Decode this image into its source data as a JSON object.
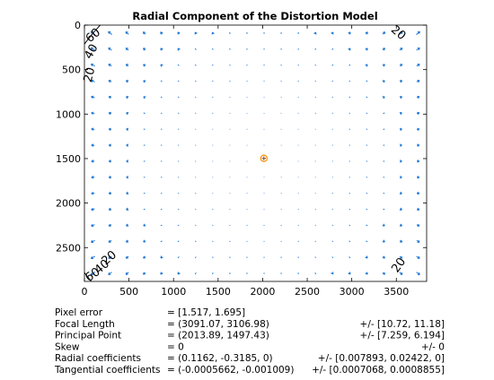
{
  "chart_data": {
    "type": "quiver",
    "title": "Radial Component of the Distortion Model",
    "xlabel": "",
    "ylabel": "",
    "xlim": [
      0,
      3840
    ],
    "ylim": [
      2880,
      0
    ],
    "y_axis_reversed": true,
    "x_ticks": [
      0,
      500,
      1000,
      1500,
      2000,
      2500,
      3000,
      3500
    ],
    "y_ticks": [
      0,
      500,
      1000,
      1500,
      2000,
      2500
    ],
    "grid": false,
    "principal_point": [
      2013.89,
      1497.43
    ],
    "image_center": [
      1920,
      1440
    ],
    "vector_grid": {
      "nx": 20,
      "ny": 16
    },
    "colors": {
      "arrows": "#1f77d4",
      "contours": "#000000",
      "principal_point": "#ff8c00",
      "center_marker": "#7a4a1a"
    },
    "contour_labels": [
      {
        "text": "20",
        "corner": "top-left",
        "data": [
          60,
          560
        ],
        "angle": -75
      },
      {
        "text": "40",
        "corner": "top-left",
        "data": [
          80,
          300
        ],
        "angle": -60
      },
      {
        "text": "60",
        "corner": "top-left",
        "data": [
          100,
          120
        ],
        "angle": -40
      },
      {
        "text": "20",
        "corner": "top-right",
        "data": [
          3520,
          90
        ],
        "angle": 40
      },
      {
        "text": "20",
        "corner": "bottom-left",
        "data": [
          280,
          2620
        ],
        "angle": -40
      },
      {
        "text": "40",
        "corner": "bottom-left",
        "data": [
          200,
          2720
        ],
        "angle": -40
      },
      {
        "text": "60",
        "corner": "bottom-left",
        "data": [
          95,
          2810
        ],
        "angle": -35
      },
      {
        "text": "20",
        "corner": "bottom-right",
        "data": [
          3530,
          2700
        ],
        "angle": -55
      }
    ],
    "stats": [
      {
        "label": "Pixel error",
        "value": "= [1.517, 1.695]",
        "error": ""
      },
      {
        "label": "Focal Length",
        "value": "= (3091.07, 3106.98)",
        "error": "+/- [10.72, 11.18]"
      },
      {
        "label": "Principal Point",
        "value": "= (2013.89, 1497.43)",
        "error": "+/- [7.259, 6.194]"
      },
      {
        "label": "Skew",
        "value": "= 0",
        "error": "+/- 0"
      },
      {
        "label": "Radial coefficients",
        "value": "= (0.1162, -0.3185, 0)",
        "error": "+/- [0.007893, 0.02422, 0]"
      },
      {
        "label": "Tangential coefficients",
        "value": "= (-0.0005662, -0.001009)",
        "error": "+/- [0.0007068, 0.0008855]"
      }
    ]
  }
}
